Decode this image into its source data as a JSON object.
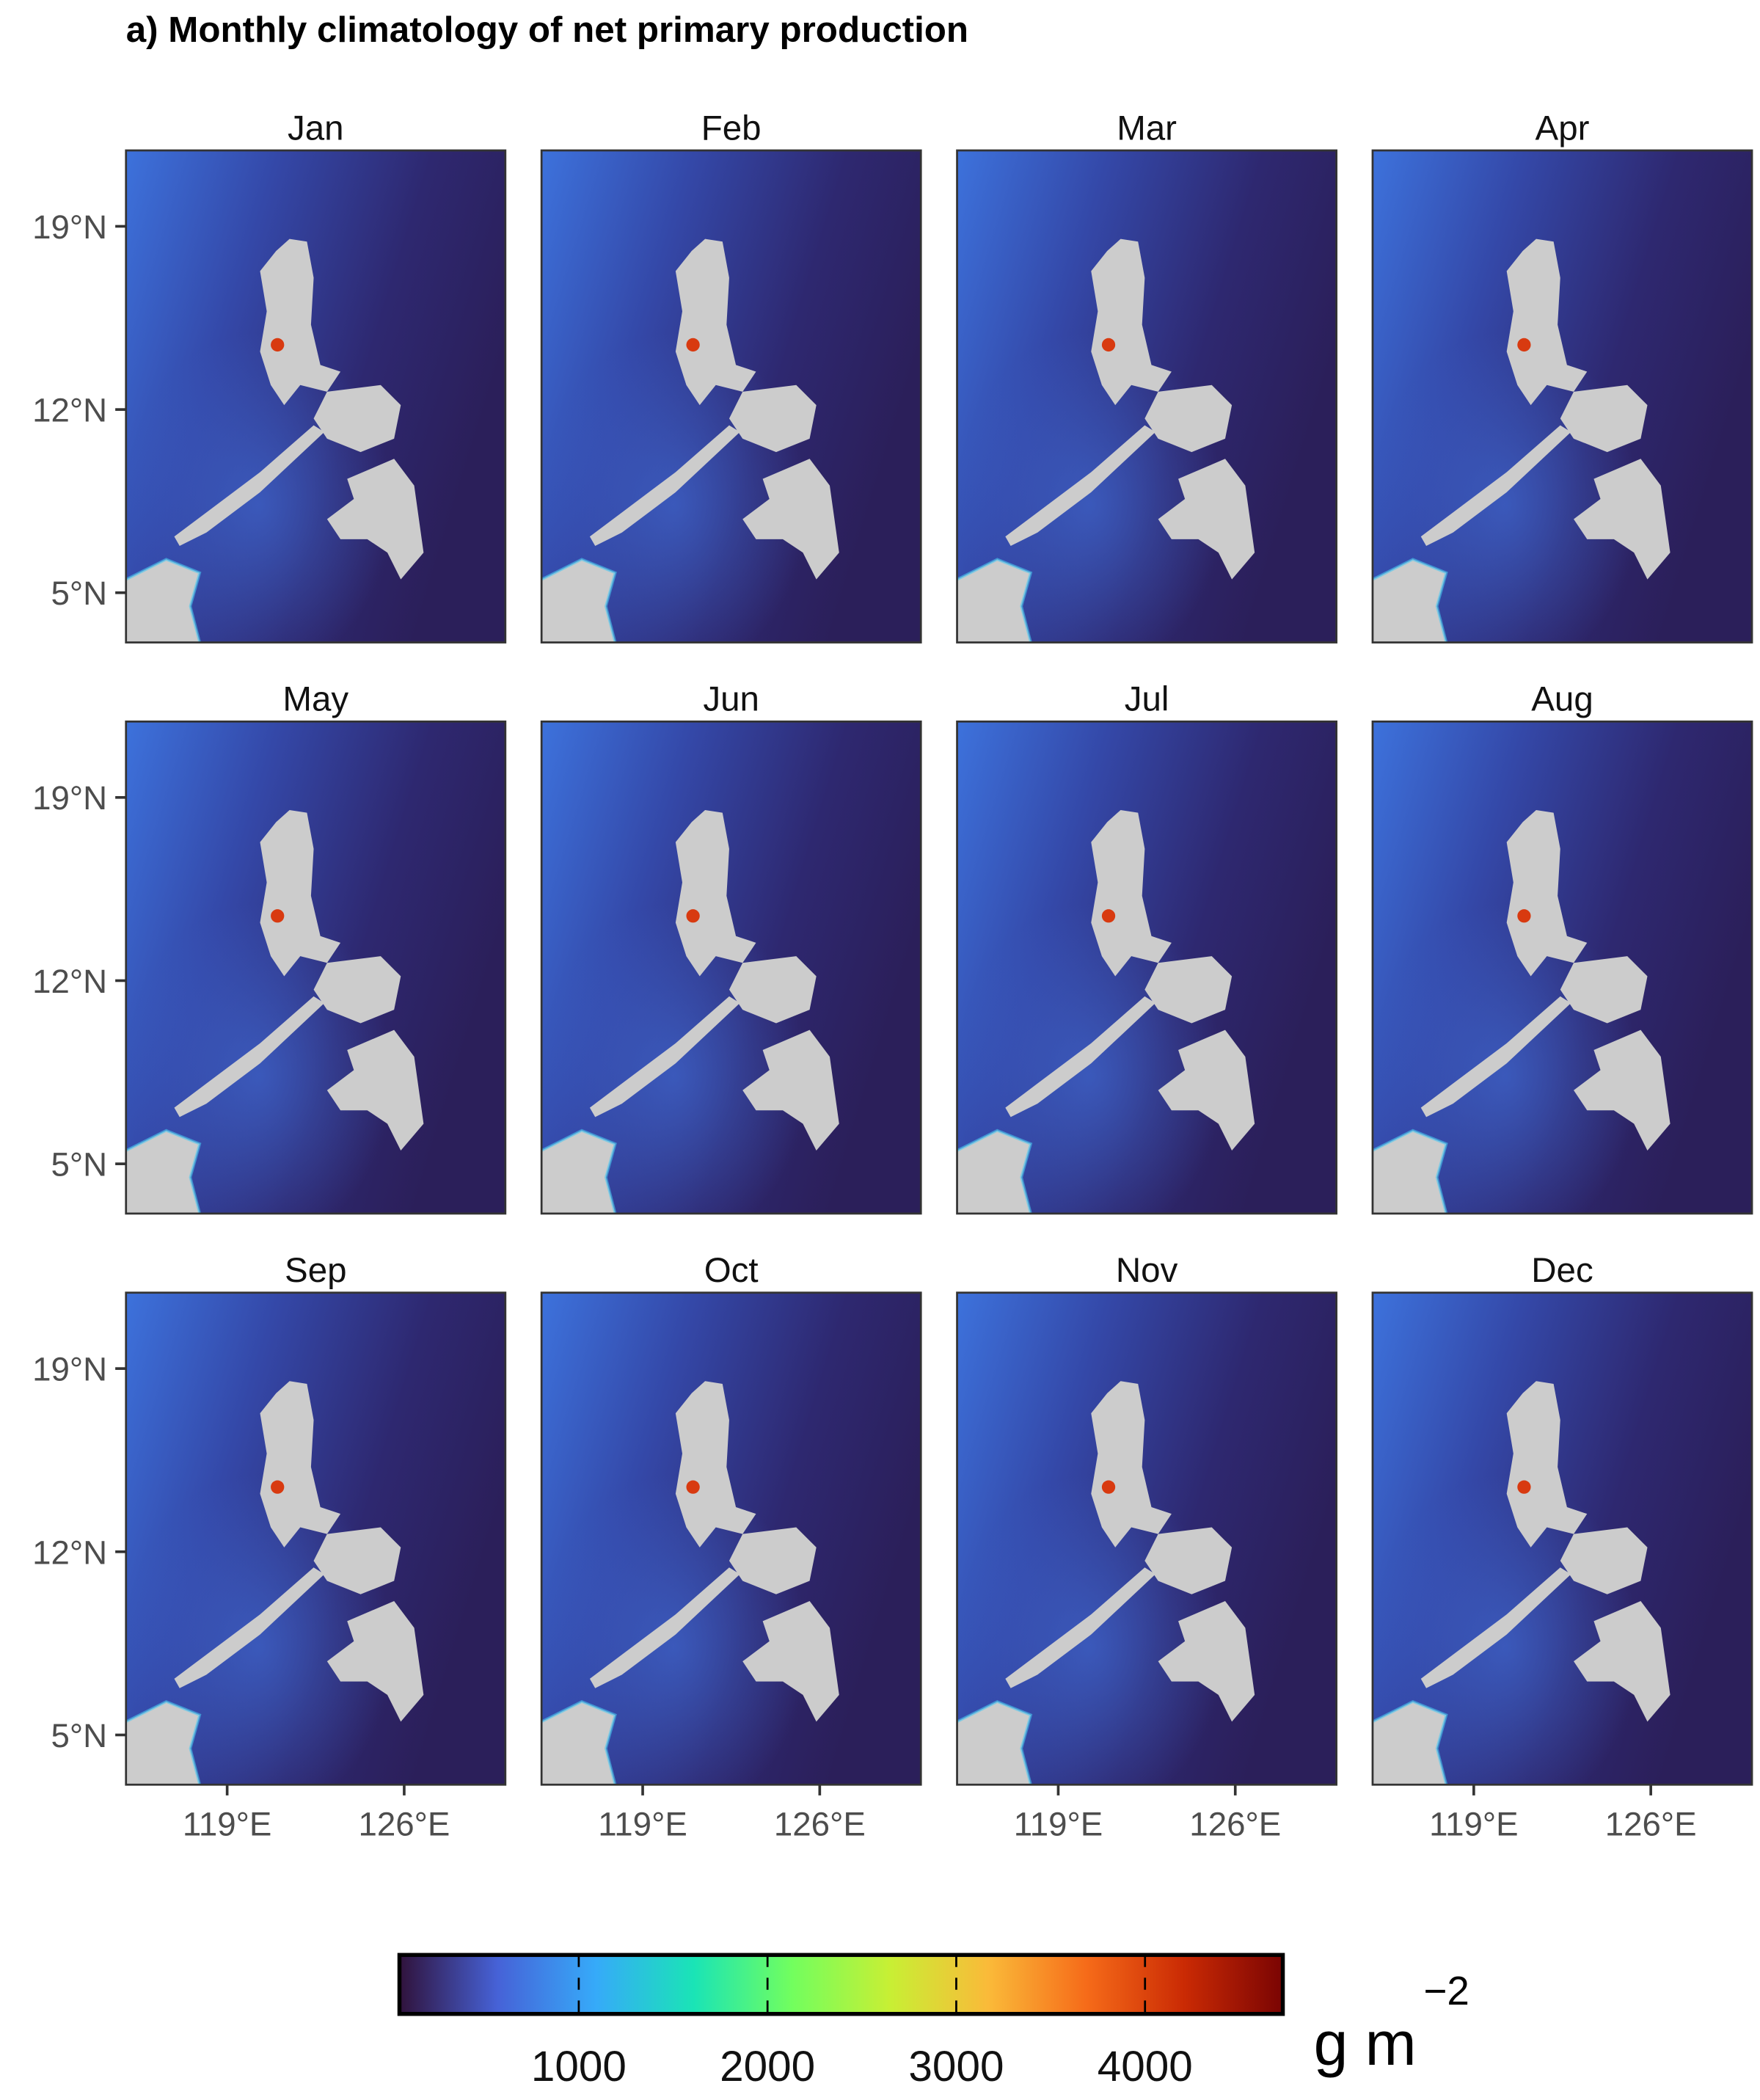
{
  "title": "a) Monthly climatology of net primary production",
  "panels": [
    "Jan",
    "Feb",
    "Mar",
    "Apr",
    "May",
    "Jun",
    "Jul",
    "Aug",
    "Sep",
    "Oct",
    "Nov",
    "Dec"
  ],
  "xlim": [
    115,
    130
  ],
  "ylim": [
    3.1,
    21.9
  ],
  "lon_ticks": [
    {
      "value": 119,
      "label": "119°E"
    },
    {
      "value": 126,
      "label": "126°E"
    }
  ],
  "lat_ticks": [
    {
      "value": 5,
      "label": "5°N"
    },
    {
      "value": 12,
      "label": "12°N"
    },
    {
      "value": 19,
      "label": "19°N"
    }
  ],
  "colorbar": {
    "lim": [
      50,
      4730
    ],
    "ticks": [
      1000,
      2000,
      3000,
      4000
    ],
    "colors": [
      "#30123b",
      "#4662d7",
      "#36aaf9",
      "#1ae4b6",
      "#72fe5e",
      "#c8ef34",
      "#faba39",
      "#f66b19",
      "#ca2a04",
      "#7a0403"
    ],
    "unit": "g m",
    "unit_superscript": "−2"
  }
}
